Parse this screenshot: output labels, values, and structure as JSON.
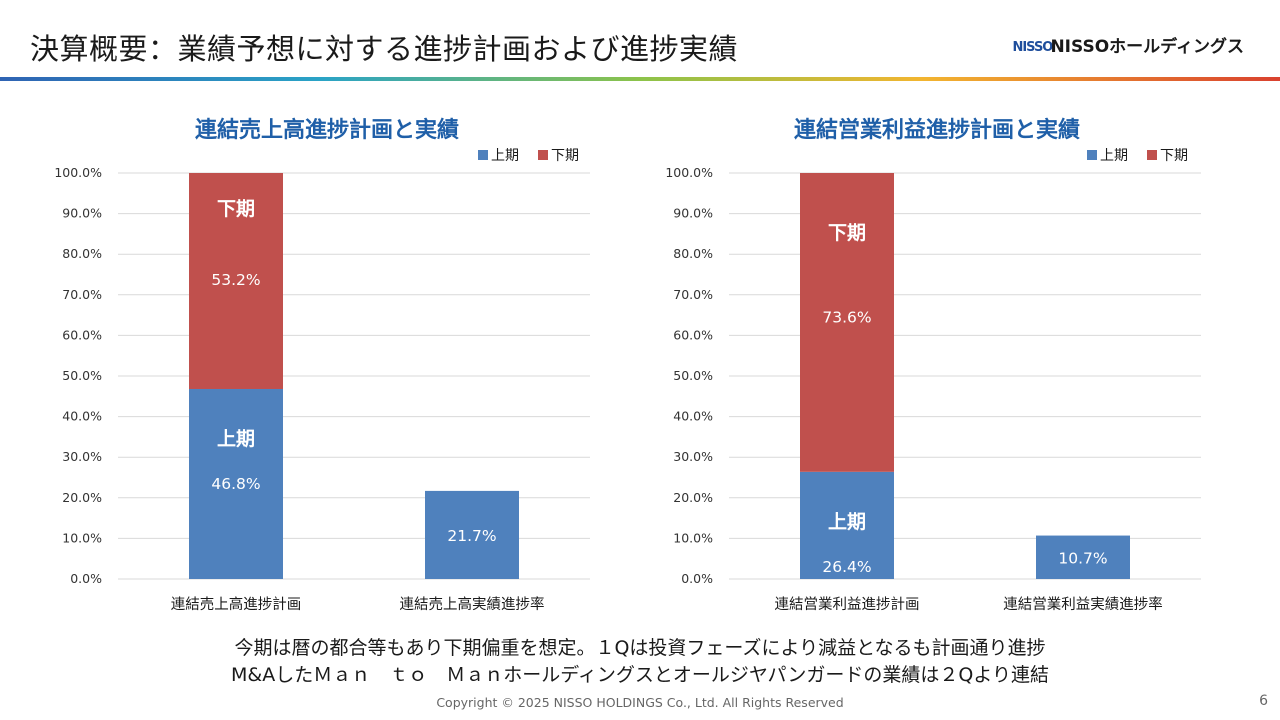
{
  "page": {
    "title": "決算概要：業績予想に対する進捗計画および進捗実績",
    "logo_mark": "NISSO",
    "logo_text": "NISSOホールディングス",
    "note_line1": "今期は暦の都合等もあり下期偏重を想定。１Qは投資フェーズにより減益となるも計画通り進捗",
    "note_line2": "M&AしたＭａｎ　ｔｏ　Ｍａｎホールディングスとオールジヤパンガードの業績は２Qより連結",
    "copyright": "Copyright © 2025 NISSO HOLDINGS Co., Ltd. All Rights Reserved",
    "page_number": "6"
  },
  "colors": {
    "first_half": "#4f81bd",
    "second_half": "#c0504d",
    "title_blue": "#1f5fa8",
    "grid": "#d9d9d9",
    "axis_text": "#333333"
  },
  "chart_data": [
    {
      "type": "bar",
      "title": "連結売上高進捗計画と実績",
      "categories": [
        "連結売上高進捗計画",
        "連結売上高実績進捗率"
      ],
      "series": [
        {
          "name": "上期",
          "values": [
            46.8,
            21.7
          ]
        },
        {
          "name": "下期",
          "values": [
            53.2,
            null
          ]
        }
      ],
      "data_labels": [
        {
          "category": 0,
          "series": 0,
          "label": "46.8%",
          "section_label": "上期"
        },
        {
          "category": 0,
          "series": 1,
          "label": "53.2%",
          "section_label": "下期"
        },
        {
          "category": 1,
          "series": 0,
          "label": "21.7%"
        }
      ],
      "stacked": true,
      "ylim": [
        0,
        100
      ],
      "yticks": [
        "0.0%",
        "10.0%",
        "20.0%",
        "30.0%",
        "40.0%",
        "50.0%",
        "60.0%",
        "70.0%",
        "80.0%",
        "90.0%",
        "100.0%"
      ],
      "legend": [
        "上期",
        "下期"
      ],
      "legend_position": "top-right",
      "grid": true
    },
    {
      "type": "bar",
      "title": "連結営業利益進捗計画と実績",
      "categories": [
        "連結営業利益進捗計画",
        "連結営業利益実績進捗率"
      ],
      "series": [
        {
          "name": "上期",
          "values": [
            26.4,
            10.7
          ]
        },
        {
          "name": "下期",
          "values": [
            73.6,
            null
          ]
        }
      ],
      "data_labels": [
        {
          "category": 0,
          "series": 0,
          "label": "26.4%",
          "section_label": "上期"
        },
        {
          "category": 0,
          "series": 1,
          "label": "73.6%",
          "section_label": "下期"
        },
        {
          "category": 1,
          "series": 0,
          "label": "10.7%"
        }
      ],
      "stacked": true,
      "ylim": [
        0,
        100
      ],
      "yticks": [
        "0.0%",
        "10.0%",
        "20.0%",
        "30.0%",
        "40.0%",
        "50.0%",
        "60.0%",
        "70.0%",
        "80.0%",
        "90.0%",
        "100.0%"
      ],
      "legend": [
        "上期",
        "下期"
      ],
      "legend_position": "top-right",
      "grid": true
    }
  ]
}
